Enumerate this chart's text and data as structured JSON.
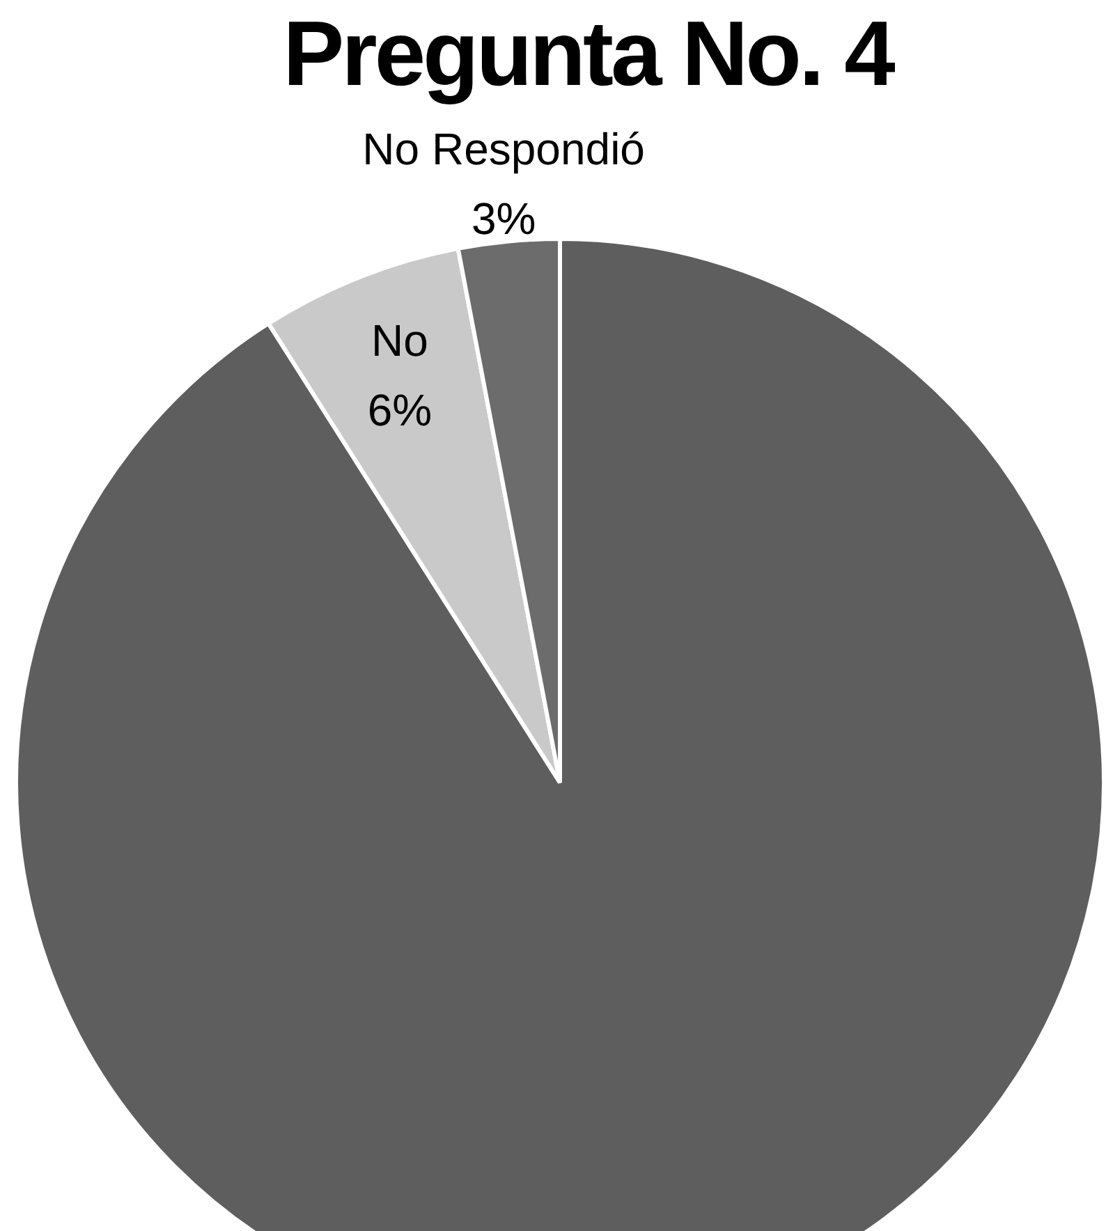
{
  "chart_data": {
    "type": "pie",
    "title": "Pregunta No. 4",
    "categories": [
      null,
      "No",
      "No Respondió"
    ],
    "values": [
      91,
      6,
      3
    ],
    "value_labels": [
      null,
      "6%",
      "3%"
    ],
    "colors": [
      "#5e5e5e",
      "#c9c9c9",
      "#6c6c6c"
    ]
  }
}
